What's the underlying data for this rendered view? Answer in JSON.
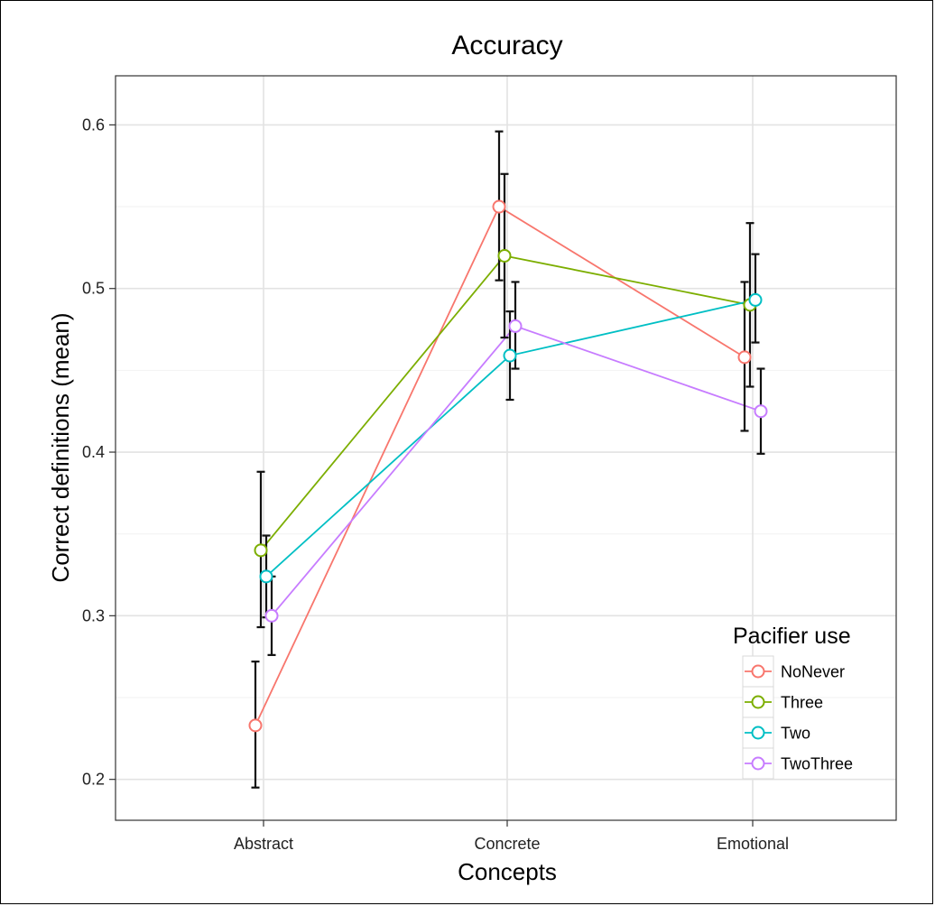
{
  "chart_data": {
    "type": "line",
    "title": "Accuracy",
    "xlabel": "Concepts",
    "ylabel": "Correct definitions (mean)",
    "categories": [
      "Abstract",
      "Concrete",
      "Emotional"
    ],
    "ylim": [
      0.175,
      0.63
    ],
    "yticks": [
      0.2,
      0.3,
      0.4,
      0.5,
      0.6
    ],
    "ytick_labels": [
      "0.2",
      "0.3",
      "0.4",
      "0.5",
      "0.6"
    ],
    "grid": true,
    "error_bars": true,
    "legend": {
      "title": "Pacifier use",
      "position": "bottom-right"
    },
    "series": [
      {
        "name": "NoNever",
        "color": "#F8766D",
        "values": [
          0.233,
          0.55,
          0.458
        ],
        "lower": [
          0.195,
          0.505,
          0.413
        ],
        "upper": [
          0.272,
          0.596,
          0.504
        ]
      },
      {
        "name": "Three",
        "color": "#7CAE00",
        "values": [
          0.34,
          0.52,
          0.49
        ],
        "lower": [
          0.293,
          0.47,
          0.44
        ],
        "upper": [
          0.388,
          0.57,
          0.54
        ]
      },
      {
        "name": "Two",
        "color": "#00BFC4",
        "values": [
          0.324,
          0.459,
          0.493
        ],
        "lower": [
          0.299,
          0.432,
          0.467
        ],
        "upper": [
          0.349,
          0.486,
          0.521
        ]
      },
      {
        "name": "TwoThree",
        "color": "#C77CFF",
        "values": [
          0.3,
          0.477,
          0.425
        ],
        "lower": [
          0.276,
          0.451,
          0.399
        ],
        "upper": [
          0.324,
          0.504,
          0.451
        ]
      }
    ]
  }
}
